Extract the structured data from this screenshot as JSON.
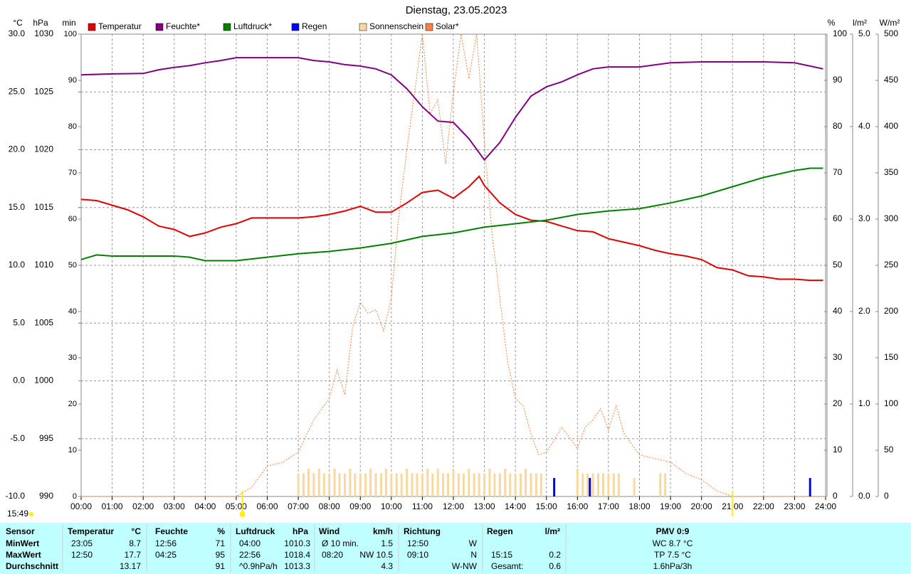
{
  "chart_data": {
    "type": "line",
    "title": "Dienstag, 23.05.2023",
    "updated": "15:49",
    "xlim": [
      0,
      24
    ],
    "xticks": [
      {
        "value": 0,
        "label": "00:00"
      },
      {
        "value": 1,
        "label": "01:00"
      },
      {
        "value": 2,
        "label": "02:00"
      },
      {
        "value": 3,
        "label": "03:00"
      },
      {
        "value": 4,
        "label": "04:00"
      },
      {
        "value": 5,
        "label": "05:00"
      },
      {
        "value": 6,
        "label": "06:00"
      },
      {
        "value": 7,
        "label": "07:00"
      },
      {
        "value": 8,
        "label": "08:00"
      },
      {
        "value": 9,
        "label": "09:00"
      },
      {
        "value": 10,
        "label": "10:00"
      },
      {
        "value": 11,
        "label": "11:00"
      },
      {
        "value": 12,
        "label": "12:00"
      },
      {
        "value": 13,
        "label": "13:00"
      },
      {
        "value": 14,
        "label": "14:00"
      },
      {
        "value": 15,
        "label": "15:00"
      },
      {
        "value": 16,
        "label": "16:00"
      },
      {
        "value": 17,
        "label": "17:00"
      },
      {
        "value": 18,
        "label": "18:00"
      },
      {
        "value": 19,
        "label": "19:00"
      },
      {
        "value": 20,
        "label": "20:00"
      },
      {
        "value": 21,
        "label": "21:00"
      },
      {
        "value": 22,
        "label": "22:00"
      },
      {
        "value": 23,
        "label": "23:00"
      },
      {
        "value": 24,
        "label": "24:00"
      }
    ],
    "grid": true,
    "sun": {
      "rise": 5.2,
      "set": 21.0
    },
    "axes": [
      {
        "label": "°C",
        "color": "#e00000",
        "lim": [
          -10,
          30
        ],
        "ticks": [
          {
            "value": 30,
            "label": "30.0"
          },
          {
            "value": 25,
            "label": "25.0"
          },
          {
            "value": 20,
            "label": "20.0"
          },
          {
            "value": 15,
            "label": "15.0"
          },
          {
            "value": 10,
            "label": "10.0"
          },
          {
            "value": 5,
            "label": "5.0"
          },
          {
            "value": 0,
            "label": "0.0"
          },
          {
            "value": -5,
            "label": "-5.0"
          },
          {
            "value": -10,
            "label": "-10.0"
          }
        ]
      },
      {
        "label": "hPa",
        "color": "#008000",
        "lim": [
          990,
          1030
        ],
        "ticks": [
          1030,
          1025,
          1020,
          1015,
          1010,
          1005,
          1000,
          995,
          990
        ]
      },
      {
        "label": "min",
        "color": "#f0d0a0",
        "lim": [
          0,
          100
        ],
        "ticks": [
          100,
          90,
          80,
          70,
          60,
          50,
          40,
          30,
          20,
          10,
          0
        ]
      },
      {
        "label": "%",
        "color": "#800080",
        "lim": [
          0,
          100
        ],
        "ticks": [
          100,
          90,
          80,
          70,
          60,
          50,
          40,
          30,
          20,
          10,
          0
        ]
      },
      {
        "label": "l/m²",
        "color": "#0000c0",
        "lim": [
          0,
          5
        ],
        "ticks": [
          {
            "value": 5,
            "label": "5.0"
          },
          {
            "value": 4,
            "label": "4.0"
          },
          {
            "value": 3,
            "label": "3.0"
          },
          {
            "value": 2,
            "label": "2.0"
          },
          {
            "value": 1,
            "label": "1.0"
          },
          {
            "value": 0,
            "label": "0.0"
          }
        ]
      },
      {
        "label": "W/m²",
        "color": "#d08040",
        "lim": [
          0,
          500
        ],
        "ticks": [
          500,
          450,
          400,
          350,
          300,
          250,
          200,
          150,
          100,
          50,
          0
        ]
      }
    ],
    "series": [
      {
        "name": "Sonnenschein",
        "color": "#f8d8a0",
        "axis": 2,
        "style": "bar",
        "x": [
          7,
          7.17,
          7.33,
          7.5,
          7.67,
          7.83,
          8,
          8.17,
          8.33,
          8.5,
          8.67,
          8.83,
          9,
          9.17,
          9.33,
          9.5,
          9.67,
          9.83,
          10,
          10.17,
          10.33,
          10.5,
          10.67,
          10.83,
          11,
          11.17,
          11.33,
          11.5,
          11.67,
          11.83,
          12,
          12.17,
          12.33,
          12.5,
          12.67,
          12.83,
          13,
          13.17,
          13.33,
          13.5,
          13.67,
          13.83,
          14,
          14.17,
          14.33,
          14.5,
          14.67,
          14.83,
          16,
          16.17,
          16.33,
          16.5,
          16.67,
          16.83,
          17,
          17.17,
          17.33,
          17.83,
          18.67,
          18.83
        ],
        "values": [
          5,
          5,
          6,
          5,
          6,
          5,
          5,
          6,
          5,
          5,
          6,
          5,
          5,
          5,
          6,
          5,
          5,
          6,
          5,
          5,
          5,
          6,
          5,
          5,
          5,
          6,
          5,
          6,
          5,
          5,
          6,
          5,
          5,
          6,
          5,
          5,
          5,
          6,
          5,
          5,
          6,
          5,
          5,
          5,
          6,
          5,
          5,
          5,
          6,
          5,
          5,
          5,
          5,
          5,
          5,
          5,
          5,
          4,
          5,
          5
        ]
      },
      {
        "name": "Solar*",
        "color": "#ff8040",
        "axis": 5,
        "style": "dotted",
        "x": [
          0,
          5,
          5.5,
          6,
          6.5,
          7,
          7.5,
          8,
          8.25,
          8.5,
          8.75,
          9,
          9.25,
          9.5,
          9.75,
          10,
          10.25,
          10.5,
          10.75,
          11,
          11.25,
          11.5,
          11.75,
          12,
          12.25,
          12.5,
          12.75,
          13,
          13.25,
          13.5,
          13.75,
          14,
          14.25,
          14.5,
          14.75,
          15,
          15.5,
          16,
          16.25,
          16.5,
          16.75,
          17,
          17.25,
          17.5,
          18,
          18.5,
          19,
          19.5,
          20,
          20.5,
          21,
          24
        ],
        "values": [
          0,
          0,
          10,
          33,
          37,
          48,
          83,
          106,
          137,
          110,
          183,
          210,
          198,
          202,
          179,
          214,
          306,
          375,
          437,
          500,
          414,
          429,
          360,
          437,
          500,
          452,
          500,
          383,
          283,
          214,
          145,
          106,
          98,
          68,
          45,
          48,
          75,
          52,
          75,
          83,
          95,
          72,
          98,
          68,
          45,
          41,
          37,
          25,
          18,
          6,
          0,
          0
        ]
      },
      {
        "name": "Temperatur",
        "color": "#e00000",
        "axis": 0,
        "style": "line",
        "x": [
          0,
          0.5,
          1,
          1.5,
          2,
          2.5,
          3,
          3.5,
          4,
          4.5,
          5,
          5.5,
          6,
          6.5,
          7,
          7.5,
          8,
          8.5,
          9,
          9.5,
          10,
          10.5,
          11,
          11.5,
          12,
          12.5,
          12.83,
          13,
          13.5,
          14,
          14.5,
          15,
          15.5,
          16,
          16.5,
          17,
          17.5,
          18,
          18.5,
          19,
          19.5,
          20,
          20.5,
          21,
          21.5,
          22,
          22.5,
          23,
          23.5,
          23.92
        ],
        "values": [
          15.7,
          15.6,
          15.2,
          14.8,
          14.2,
          13.4,
          13.1,
          12.5,
          12.8,
          13.3,
          13.6,
          14.1,
          14.1,
          14.1,
          14.1,
          14.2,
          14.4,
          14.7,
          15.1,
          14.6,
          14.6,
          15.4,
          16.3,
          16.5,
          15.8,
          16.8,
          17.7,
          16.9,
          15.4,
          14.4,
          13.9,
          13.8,
          13.4,
          13.0,
          12.9,
          12.3,
          12.0,
          11.7,
          11.3,
          11.0,
          10.8,
          10.5,
          9.8,
          9.6,
          9.1,
          9.0,
          8.8,
          8.8,
          8.7,
          8.7
        ]
      },
      {
        "name": "Feuchte*",
        "color": "#800080",
        "axis": 3,
        "style": "line",
        "x": [
          0,
          1,
          2,
          2.5,
          3,
          3.5,
          4,
          4.5,
          5,
          6,
          7,
          7.5,
          8,
          8.5,
          9,
          9.5,
          10,
          10.5,
          11,
          11.5,
          12,
          12.5,
          13,
          13.5,
          14,
          14.5,
          15,
          15.5,
          16,
          16.5,
          17,
          18,
          19,
          20,
          21,
          22,
          23,
          23.5,
          23.92
        ],
        "values": [
          91.2,
          91.4,
          91.5,
          92.3,
          92.8,
          93.2,
          93.8,
          94.3,
          94.9,
          94.9,
          94.9,
          94.3,
          94.0,
          93.4,
          93.1,
          92.5,
          91.2,
          88.2,
          84.3,
          81.2,
          80.9,
          77.4,
          72.8,
          76.6,
          82.0,
          86.6,
          88.6,
          89.7,
          91.2,
          92.5,
          92.9,
          92.9,
          93.8,
          94.0,
          94.0,
          94.0,
          93.8,
          93.1,
          92.5
        ]
      },
      {
        "name": "Luftdruck*",
        "color": "#008000",
        "axis": 1,
        "style": "line",
        "x": [
          0,
          0.5,
          1,
          2,
          3,
          3.5,
          4,
          4.5,
          5,
          6,
          7,
          8,
          9,
          10,
          11,
          12,
          13,
          14,
          15,
          16,
          17,
          18,
          19,
          20,
          21,
          22,
          23,
          23.5,
          23.92
        ],
        "values": [
          1010.5,
          1010.9,
          1010.8,
          1010.8,
          1010.8,
          1010.7,
          1010.4,
          1010.4,
          1010.4,
          1010.7,
          1011.0,
          1011.2,
          1011.5,
          1011.9,
          1012.5,
          1012.8,
          1013.3,
          1013.6,
          1013.9,
          1014.4,
          1014.7,
          1014.9,
          1015.4,
          1016.0,
          1016.8,
          1017.6,
          1018.2,
          1018.4,
          1018.4
        ]
      },
      {
        "name": "Regen",
        "color": "#0000ff",
        "axis": 4,
        "style": "bar",
        "x": [
          15.25,
          16.4,
          23.5
        ],
        "values": [
          0.2,
          0.2,
          0.2
        ]
      }
    ],
    "legend_order": [
      2,
      3,
      4,
      5,
      0,
      1
    ]
  },
  "table": {
    "header": {
      "sensor": "Sensor",
      "temp": "Temperatur",
      "temp_unit": "°C",
      "hum": "Feuchte",
      "hum_unit": "%",
      "press": "Luftdruck",
      "press_unit": "hPa",
      "wind": "Wind",
      "wind_unit": "km/h",
      "dir": "Richtung",
      "rain": "Regen",
      "rain_unit": "l/m²",
      "pmv": "PMV 0:9"
    },
    "rows": [
      {
        "label": "MinWert",
        "temp_time": "23:05",
        "temp": "8.7",
        "hum_time": "12:56",
        "hum": "71",
        "press_time": "04:00",
        "press": "1010.3",
        "wind_time": "Ø 10 min.",
        "wind": "1.5",
        "dir_time": "12:50",
        "dir": "W",
        "pmv": "WC 8.7 °C"
      },
      {
        "label": "MaxWert",
        "temp_time": "12:50",
        "temp": "17.7",
        "hum_time": "04:25",
        "hum": "95",
        "press_time": "22:56",
        "press": "1018.4",
        "wind_time": "08:20",
        "wind": "NW 10.5",
        "dir_time": "09:10",
        "dir": "N",
        "rain_time": "15:15",
        "rain": "0.2",
        "pmv": "TP 7.5 °C"
      },
      {
        "label": "Durchschnitt",
        "temp": "13.17",
        "hum": "91",
        "press_time": "^0.9hPa/h",
        "press": "1013.3",
        "wind": "4.3",
        "dir": "W-NW",
        "rain_time": "Gesamt:",
        "rain": "0.6",
        "pmv": "1.6hPa/3h"
      }
    ]
  }
}
